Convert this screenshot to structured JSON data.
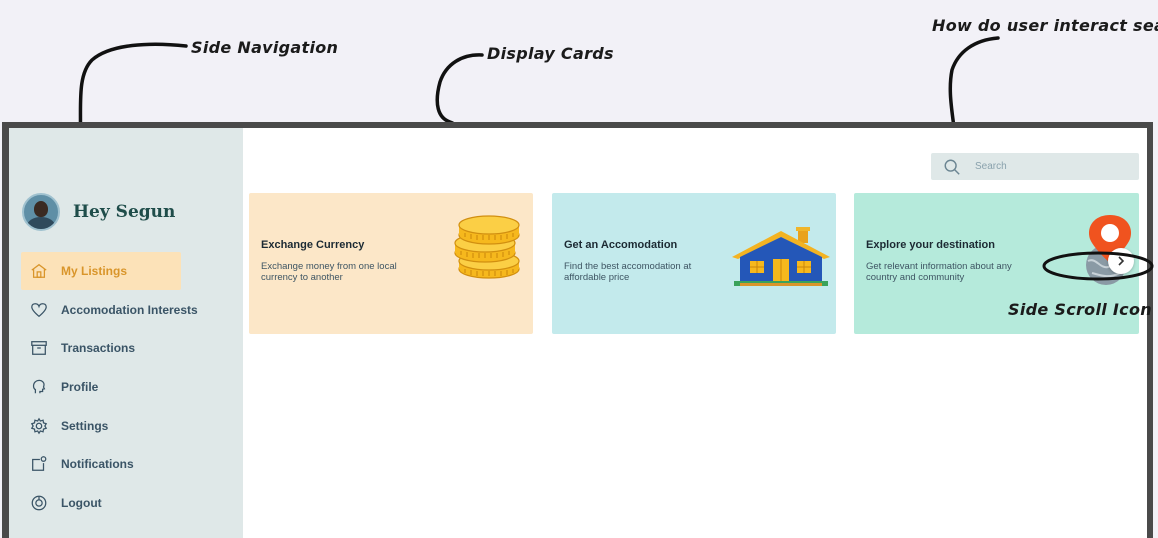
{
  "annotations": {
    "side_nav": "Side Navigation",
    "display_cards": "Display Cards",
    "search": "How do user interact search",
    "side_scroll": "Side Scroll Icon"
  },
  "sidebar": {
    "greeting": "Hey Segun",
    "items": [
      {
        "label": "My Listings",
        "icon": "home-icon",
        "active": true
      },
      {
        "label": "Accomodation Interests",
        "icon": "heart-icon",
        "active": false
      },
      {
        "label": "Transactions",
        "icon": "archive-box-icon",
        "active": false
      },
      {
        "label": "Profile",
        "icon": "profile-head-icon",
        "active": false
      },
      {
        "label": "Settings",
        "icon": "gear-icon",
        "active": false
      },
      {
        "label": "Notifications",
        "icon": "bell-notification-icon",
        "active": false
      },
      {
        "label": "Logout",
        "icon": "power-icon",
        "active": false
      }
    ]
  },
  "search": {
    "placeholder": "Search",
    "icon": "search-icon"
  },
  "cards": [
    {
      "title": "Exchange Currency",
      "description": "Exchange money from one local currency to another",
      "color": "#fce7c8",
      "icon": "coins-stack-icon"
    },
    {
      "title": "Get an Accomodation",
      "description": "Find the best accomodation at affordable price",
      "color": "#c3eaec",
      "icon": "house-icon"
    },
    {
      "title": "Explore your destination",
      "description": "Get relevant information about any country and community",
      "color": "#b5eadb",
      "icon": "globe-pin-icon"
    }
  ],
  "colors": {
    "sidebar_bg": "#dfe8e8",
    "active_bg": "#fce2b8",
    "active_text": "#d9952a",
    "nav_text": "#3a5466"
  }
}
